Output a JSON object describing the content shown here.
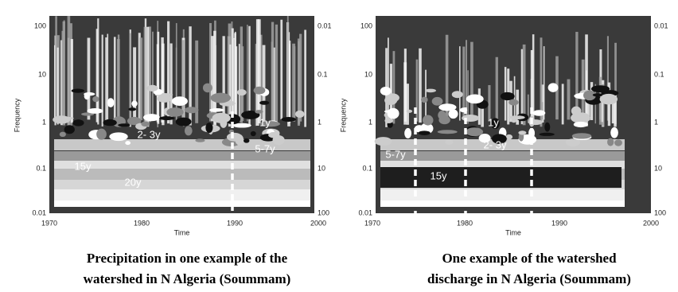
{
  "panels": [
    {
      "y_label": "Frequency",
      "x_label": "Time",
      "left_ticks": [
        100,
        10,
        1,
        0.1,
        0.01
      ],
      "right_ticks": [
        0.01,
        0.1,
        1,
        10,
        100
      ],
      "x_ticks": [
        1970,
        1980,
        1990,
        2000
      ],
      "annotations": [
        "2- 3y",
        "1y",
        "5-7y",
        "15y",
        "20y"
      ],
      "caption": [
        "Precipitation in one example of the",
        "watershed in N Algeria (Soummam)"
      ]
    },
    {
      "y_label": "Frequency",
      "x_label": "Time",
      "left_ticks": [
        100,
        10,
        1,
        0.1,
        0.01
      ],
      "right_ticks": [
        0.01,
        0.1,
        1,
        10,
        100
      ],
      "x_ticks": [
        1970,
        1980,
        1990,
        2000
      ],
      "annotations": [
        "5-7y",
        "1y",
        "2- 3y",
        "15y"
      ],
      "caption": [
        "One example of the watershed",
        "discharge in N Algeria (Soummam)"
      ]
    }
  ]
}
